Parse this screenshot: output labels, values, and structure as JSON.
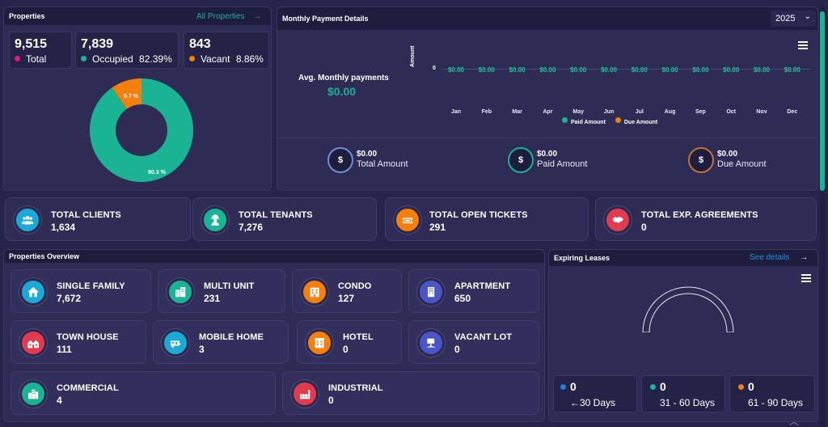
{
  "properties": {
    "title": "Properties",
    "link": "All Properties",
    "stats": [
      {
        "value": "9,515",
        "label": "Total",
        "pct": "",
        "color": "#e0197a"
      },
      {
        "value": "7,839",
        "label": "Occupied",
        "pct": "82.39%",
        "color": "#1ab394"
      },
      {
        "value": "843",
        "label": "Vacant",
        "pct": "8.86%",
        "color": "#f57f0d"
      }
    ]
  },
  "chart_data": [
    {
      "type": "pie",
      "title": "",
      "labels": [
        "90.3 %",
        "9.7 %"
      ],
      "values": [
        90.3,
        9.7
      ],
      "colors": [
        "#1ab394",
        "#f57f0d"
      ],
      "donut": true
    },
    {
      "type": "line",
      "title": "",
      "categories": [
        "Jan",
        "Feb",
        "Mar",
        "Apr",
        "May",
        "Jun",
        "Jul",
        "Aug",
        "Sep",
        "Oct",
        "Nov",
        "Dec"
      ],
      "series": [
        {
          "name": "Paid Amount",
          "values": [
            0,
            0,
            0,
            0,
            0,
            0,
            0,
            0,
            0,
            0,
            0,
            0
          ],
          "color": "#1ab394"
        },
        {
          "name": "Due Amount",
          "values": [
            0,
            0,
            0,
            0,
            0,
            0,
            0,
            0,
            0,
            0,
            0,
            0
          ],
          "color": "#f57f0d"
        }
      ],
      "point_labels": [
        "$0.00",
        "$0.00",
        "$0.00",
        "$0.00",
        "$0.00",
        "$0.00",
        "$0.00",
        "$0.00",
        "$0.00",
        "$0.00",
        "$0.00",
        "$0.00"
      ],
      "ylabel": "Amount",
      "yticks": [
        "0"
      ],
      "legend": "bottom"
    }
  ],
  "payments": {
    "title": "Monthly Payment Details",
    "year": "2025",
    "avg_label": "Avg. Monthly payments",
    "avg_value": "$0.00",
    "summary": [
      {
        "symbol": "$",
        "value": "$0.00",
        "label": "Total Amount",
        "color": "#6c8fd6"
      },
      {
        "symbol": "$",
        "value": "$0.00",
        "label": "Paid Amount",
        "color": "#1ab394"
      },
      {
        "symbol": "$",
        "value": "$0.00",
        "label": "Due Amount",
        "color": "#c0703a"
      }
    ]
  },
  "totals": [
    {
      "title": "TOTAL CLIENTS",
      "value": "1,634",
      "icon": "clients-icon",
      "color": "#1da9d6"
    },
    {
      "title": "TOTAL TENANTS",
      "value": "7,276",
      "icon": "tenants-icon",
      "color": "#1ab394"
    },
    {
      "title": "TOTAL OPEN TICKETS",
      "value": "291",
      "icon": "tickets-icon",
      "color": "#f57f0d"
    },
    {
      "title": "TOTAL EXP. AGREEMENTS",
      "value": "0",
      "icon": "agreements-icon",
      "color": "#e23a4e"
    }
  ],
  "overview": {
    "title": "Properties Overview",
    "items": [
      {
        "title": "SINGLE FAMILY",
        "value": "7,672",
        "icon": "house-icon",
        "color": "#1da9d6"
      },
      {
        "title": "MULTI UNIT",
        "value": "231",
        "icon": "multi-unit-icon",
        "color": "#1ab394"
      },
      {
        "title": "CONDO",
        "value": "127",
        "icon": "condo-icon",
        "color": "#f57f0d"
      },
      {
        "title": "APARTMENT",
        "value": "650",
        "icon": "apartment-icon",
        "color": "#4a56c8"
      },
      {
        "title": "TOWN HOUSE",
        "value": "111",
        "icon": "townhouse-icon",
        "color": "#e23a4e"
      },
      {
        "title": "MOBILE HOME",
        "value": "3",
        "icon": "mobile-home-icon",
        "color": "#1da9d6"
      },
      {
        "title": "HOTEL",
        "value": "0",
        "icon": "hotel-icon",
        "color": "#f57f0d"
      },
      {
        "title": "VACANT LOT",
        "value": "0",
        "icon": "vacant-lot-icon",
        "color": "#4a56c8"
      },
      {
        "title": "COMMERCIAL",
        "value": "4",
        "icon": "commercial-icon",
        "color": "#1ab394"
      },
      {
        "title": "INDUSTRIAL",
        "value": "0",
        "icon": "industrial-icon",
        "color": "#e23a4e"
      }
    ]
  },
  "leases": {
    "title": "Expiring Leases",
    "link": "See details",
    "buckets": [
      {
        "value": "0",
        "label": "←30 Days",
        "color": "#1e7fe0"
      },
      {
        "value": "0",
        "label": "31 - 60 Days",
        "color": "#1ab394"
      },
      {
        "value": "0",
        "label": "61 - 90 Days",
        "color": "#f57f0d"
      }
    ]
  }
}
